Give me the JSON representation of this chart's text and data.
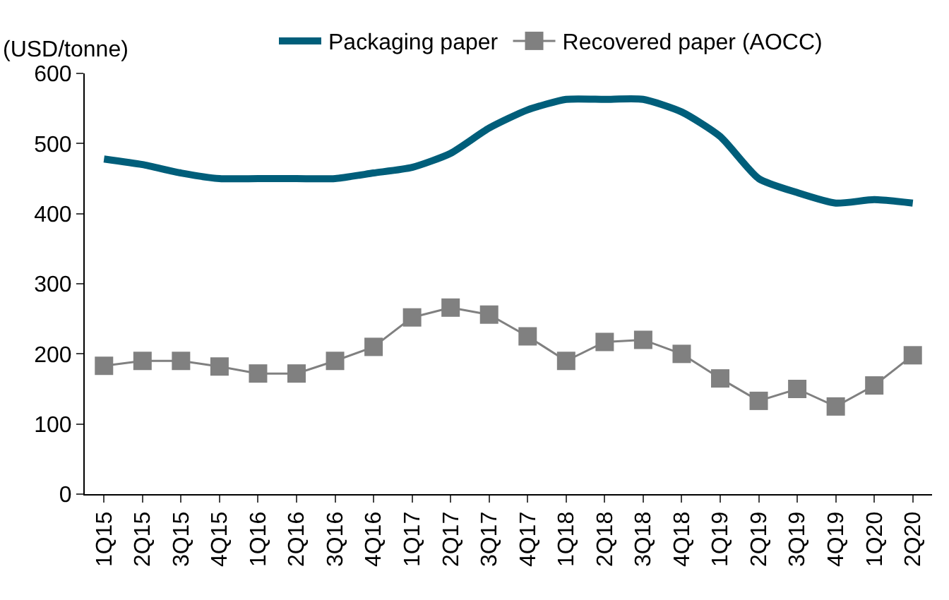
{
  "chart_data": {
    "type": "line",
    "ylabel": "(USD/tonne)",
    "categories": [
      "1Q15",
      "2Q15",
      "3Q15",
      "4Q15",
      "1Q16",
      "2Q16",
      "3Q16",
      "4Q16",
      "1Q17",
      "2Q17",
      "3Q17",
      "4Q17",
      "1Q18",
      "2Q18",
      "3Q18",
      "4Q18",
      "1Q19",
      "2Q19",
      "3Q19",
      "4Q19",
      "1Q20",
      "2Q20"
    ],
    "series": [
      {
        "name": "Packaging paper",
        "color": "#005e7a",
        "marker": "none",
        "values": [
          478,
          470,
          458,
          450,
          450,
          450,
          450,
          458,
          466,
          486,
          522,
          548,
          563,
          563,
          563,
          545,
          510,
          450,
          430,
          415,
          420,
          415
        ]
      },
      {
        "name": "Recovered paper (AOCC)",
        "color": "#808080",
        "marker": "square",
        "values": [
          183,
          190,
          190,
          182,
          172,
          172,
          190,
          210,
          252,
          266,
          256,
          225,
          190,
          217,
          220,
          200,
          165,
          133,
          150,
          125,
          155,
          198
        ]
      }
    ],
    "ylim": [
      0,
      600
    ],
    "yticks": [
      0,
      100,
      200,
      300,
      400,
      500,
      600
    ],
    "legend": "top"
  }
}
